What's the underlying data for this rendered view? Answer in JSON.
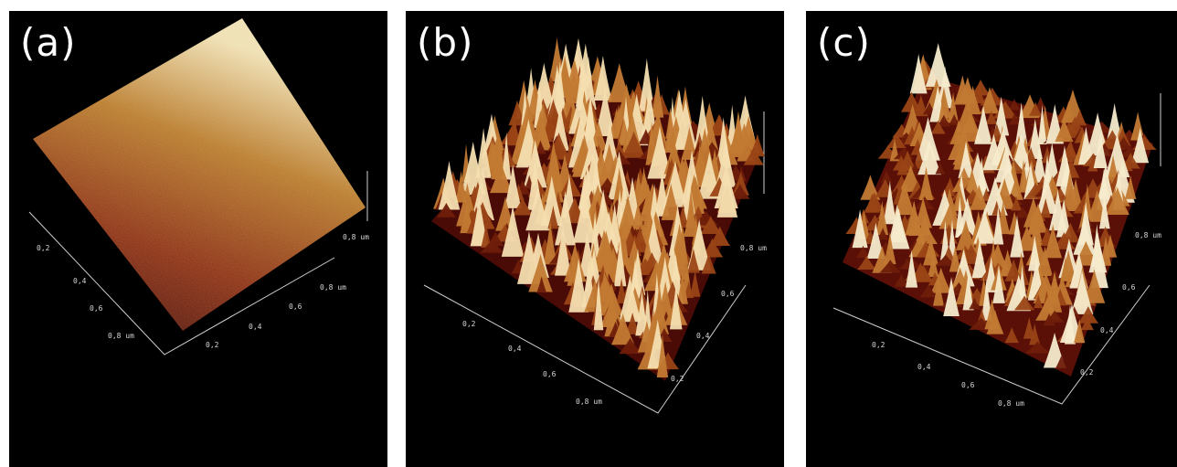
{
  "panels": [
    {
      "id": "a",
      "label": "(a)",
      "axis_unit_label": "0,8 um",
      "ticks_left": [
        "0,2",
        "0,4",
        "0,6",
        "0,8 um"
      ],
      "ticks_bottom": [
        "0,2",
        "0,4",
        "0,6",
        "0,8 um"
      ]
    },
    {
      "id": "b",
      "label": "(b)",
      "axis_unit_label": "0,8 um",
      "ticks_left": [
        "0,2",
        "0,4",
        "0,6",
        "0,8 um"
      ],
      "ticks_right": [
        "0,2",
        "0,4",
        "0,6",
        "0,8 um"
      ]
    },
    {
      "id": "c",
      "label": "(c)",
      "axis_unit_label": "0,8 um",
      "ticks_left": [
        "0,2",
        "0,4",
        "0,6",
        "0,8 um"
      ],
      "ticks_right": [
        "0,2",
        "0,4",
        "0,6",
        "0,8 um"
      ]
    }
  ],
  "colors": {
    "background": "#000000",
    "surface_low": "#4a0a06",
    "surface_mid": "#a3521b",
    "surface_high": "#f3e6b8"
  }
}
